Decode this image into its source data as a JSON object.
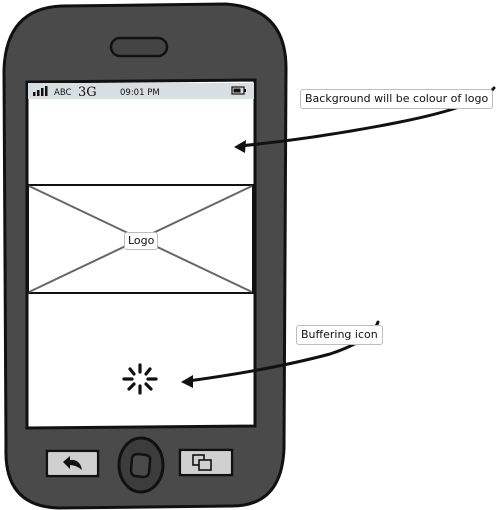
{
  "status_bar": {
    "carrier": "ABC",
    "network": "3G",
    "time": "09:01 PM"
  },
  "logo_placeholder": {
    "label": "Logo"
  },
  "annotations": {
    "background_note": "Background will be colour of logo",
    "buffering_note": "Buffering icon"
  },
  "icons": {
    "back": "back-arrow-icon",
    "home": "home-button-icon",
    "windows": "multi-window-icon",
    "spinner": "buffering-spinner-icon",
    "battery": "battery-icon",
    "signal": "signal-strength-icon"
  },
  "colors": {
    "phone_body": "#4a4a4a",
    "outline": "#111111",
    "screen": "#ffffff",
    "status_bar": "#d9dee2"
  }
}
